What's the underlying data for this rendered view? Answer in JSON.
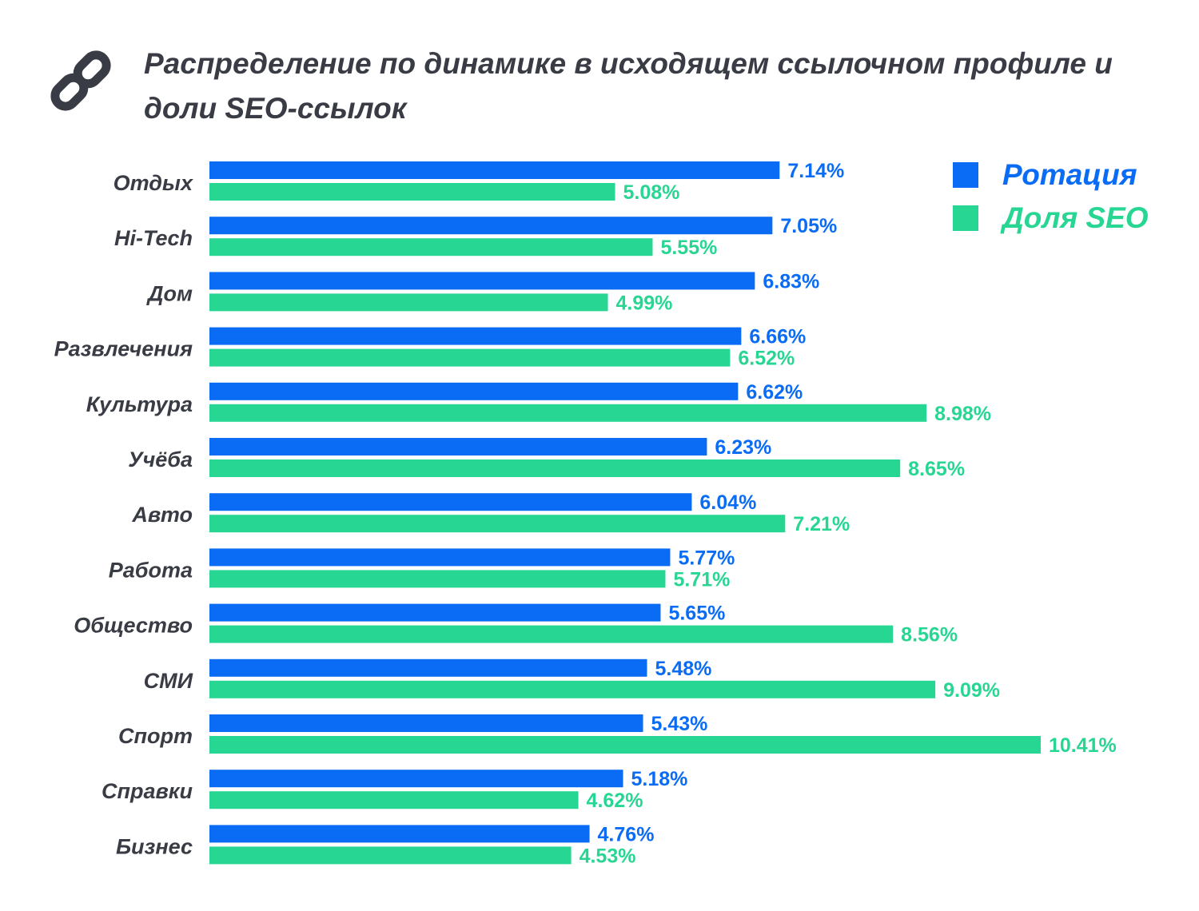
{
  "title": "Распределение по динамике в исходящем ссылочном профиле и доли SEO-ссылок",
  "icon": "link-chain-icon",
  "colors": {
    "rotation": "#0a6cf5",
    "seo": "#27d692",
    "text": "#3a3c45"
  },
  "chart_data": {
    "type": "bar",
    "orientation": "horizontal",
    "categories": [
      "Отдых",
      "Hi-Tech",
      "Дом",
      "Развлечения",
      "Культура",
      "Учёба",
      "Авто",
      "Работа",
      "Общество",
      "СМИ",
      "Спорт",
      "Справки",
      "Бизнес"
    ],
    "series": [
      {
        "name": "Ротация",
        "color": "#0a6cf5",
        "values": [
          7.14,
          7.05,
          6.83,
          6.66,
          6.62,
          6.23,
          6.04,
          5.77,
          5.65,
          5.48,
          5.43,
          5.18,
          4.76
        ],
        "labels": [
          "7.14%",
          "7.05%",
          "6.83%",
          "6.66%",
          "6.62%",
          "6.23%",
          "6.04%",
          "5.77%",
          "5.65%",
          "5.48%",
          "5.43%",
          "5.18%",
          "4.76%"
        ]
      },
      {
        "name": "Доля SEO",
        "color": "#27d692",
        "values": [
          5.08,
          5.55,
          4.99,
          6.52,
          8.98,
          8.65,
          7.21,
          5.71,
          8.56,
          9.09,
          10.41,
          4.62,
          4.53
        ],
        "labels": [
          "5.08%",
          "5.55%",
          "4.99%",
          "6.52%",
          "8.98%",
          "8.65%",
          "7.21%",
          "5.71%",
          "8.56%",
          "9.09%",
          "10.41%",
          "4.62%",
          "4.53%"
        ]
      }
    ],
    "xlim": [
      0,
      10.41
    ],
    "grid": false,
    "legend_position": "top-right"
  }
}
